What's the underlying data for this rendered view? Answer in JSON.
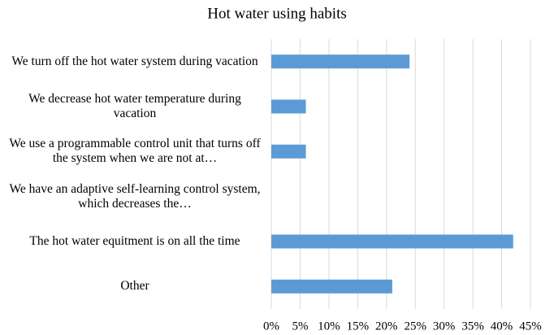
{
  "chart_data": {
    "type": "hbar",
    "title": "Hot water using habits",
    "categories": [
      "We turn off the hot water system during vacation",
      "We decrease hot water temperature during vacation",
      "We use a programmable control unit that turns off the system when we are not at…",
      "We have an adaptive self-learning control system, which decreases the…",
      "The hot water equitment is on all the time",
      "Other"
    ],
    "values": [
      24,
      6,
      6,
      0,
      42,
      21
    ],
    "color": "#5b9bd5",
    "xlim": [
      0,
      45
    ],
    "xticks": [
      {
        "value": 0,
        "label": "0%"
      },
      {
        "value": 5,
        "label": "5%"
      },
      {
        "value": 10,
        "label": "10%"
      },
      {
        "value": 15,
        "label": "15%"
      },
      {
        "value": 20,
        "label": "20%"
      },
      {
        "value": 25,
        "label": "25%"
      },
      {
        "value": 30,
        "label": "30%"
      },
      {
        "value": 35,
        "label": "35%"
      },
      {
        "value": 40,
        "label": "40%"
      },
      {
        "value": 45,
        "label": "45%"
      }
    ],
    "grid": true
  }
}
